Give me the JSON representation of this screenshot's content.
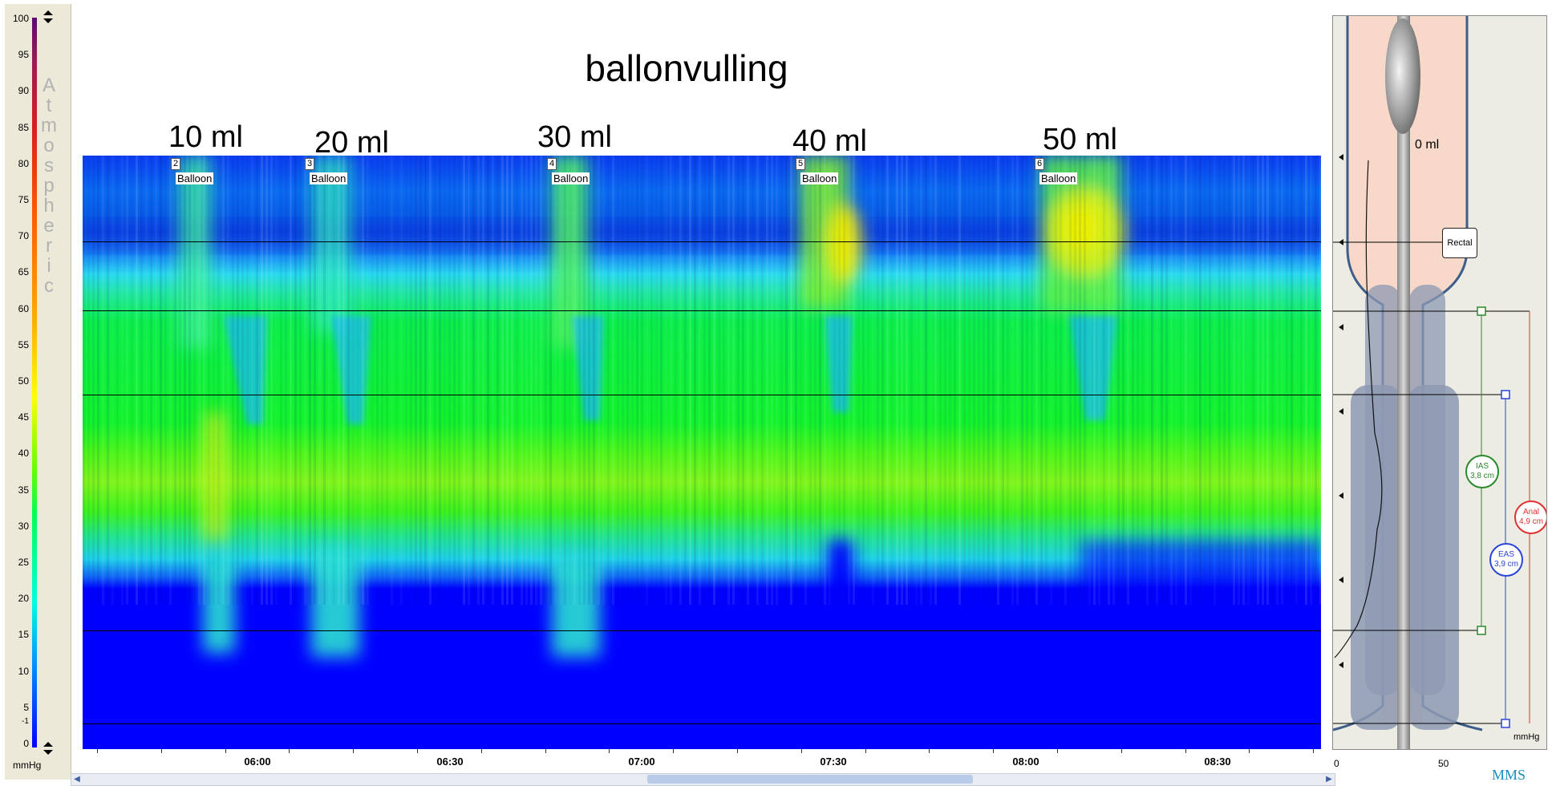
{
  "title": "ballonvulling",
  "scale": {
    "ticks": [
      "100",
      "95",
      "90",
      "85",
      "80",
      "75",
      "70",
      "65",
      "60",
      "55",
      "50",
      "45",
      "40",
      "35",
      "30",
      "25",
      "20",
      "15",
      "10",
      "5",
      "0",
      "-1"
    ],
    "atmospheric_letters": [
      "A",
      "t",
      "m",
      "o",
      "s",
      "p",
      "h",
      "e",
      "r",
      "i",
      "c"
    ],
    "unit": "mmHg",
    "max": 100,
    "min": -1
  },
  "volume_labels": [
    "10 ml",
    "20 ml",
    "30 ml",
    "40 ml",
    "50 ml"
  ],
  "markers": [
    {
      "num": "2",
      "label": "Balloon"
    },
    {
      "num": "3",
      "label": "Balloon"
    },
    {
      "num": "4",
      "label": "Balloon"
    },
    {
      "num": "5",
      "label": "Balloon"
    },
    {
      "num": "6",
      "label": "Balloon"
    }
  ],
  "time_axis": [
    "06:00",
    "06:30",
    "07:00",
    "07:30",
    "08:00",
    "08:30"
  ],
  "anatomy": {
    "volume_text": "0 ml",
    "rectal_label": "Rectal",
    "ias": {
      "name": "IAS",
      "length": "3,8 cm",
      "color": "#2a8a2a"
    },
    "anal": {
      "name": "Anal",
      "length": "4,9 cm",
      "color": "#e03030"
    },
    "eas": {
      "name": "EAS",
      "length": "3,9 cm",
      "color": "#2a45d8"
    },
    "axis_ticks": [
      "0",
      "50"
    ],
    "unit": "mmHg"
  },
  "logo": "MMS",
  "colors": {
    "background_low": "#0000ff",
    "mid": "#00ff33",
    "high": "#ffff00",
    "anatomy_tissue": "#f8d7c8",
    "sphincter": "#9aa5bb"
  }
}
